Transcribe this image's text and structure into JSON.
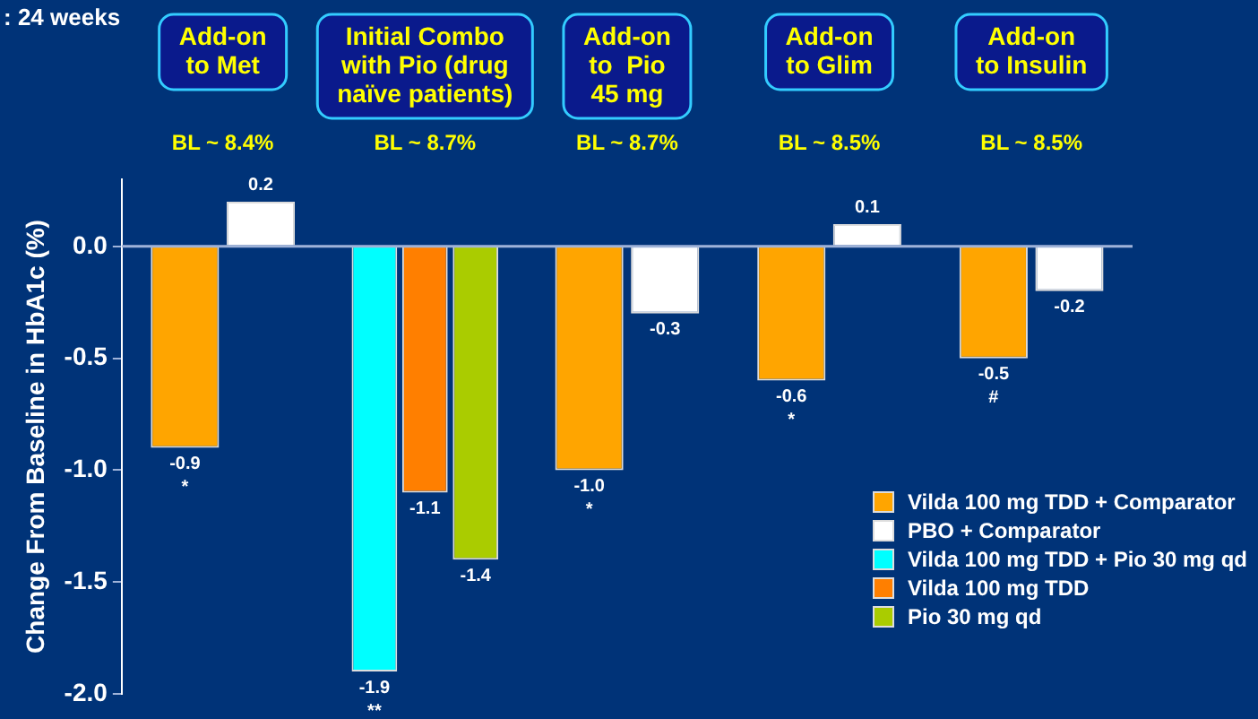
{
  "chart_data": {
    "type": "bar",
    "title": ": 24 weeks",
    "ylabel": "Change From Baseline in HbA1c (%)",
    "categories": [
      "Add-on\nto Met",
      "Initial Combo\nwith Pio (drug\nnaïve patients)",
      "Add-on\nto  Pio\n45 mg",
      "Add-on\nto Glim",
      "Add-on\nto Insulin"
    ],
    "series": [
      {
        "name": "Vilda 100 mg TDD + Comparator",
        "color": "#ffa500",
        "values": [
          -0.9,
          null,
          -1.0,
          -0.6,
          -0.5
        ],
        "value_labels": [
          "-0.9\n*",
          null,
          "-1.0\n*",
          "-0.6\n*",
          "-0.5\n#"
        ]
      },
      {
        "name": "PBO + Comparator",
        "color": "#ffffff",
        "values": [
          0.2,
          null,
          -0.3,
          0.1,
          -0.2
        ],
        "value_labels": [
          "0.2",
          null,
          "-0.3",
          "0.1",
          "-0.2"
        ]
      },
      {
        "name": "Vilda 100 mg TDD + Pio 30 mg qd",
        "color": "#00ffff",
        "values": [
          null,
          -1.9,
          null,
          null,
          null
        ],
        "value_labels": [
          null,
          "-1.9\n**",
          null,
          null,
          null
        ]
      },
      {
        "name": "Vilda 100 mg TDD",
        "color": "#ff7f00",
        "values": [
          null,
          -1.1,
          null,
          null,
          null
        ],
        "value_labels": [
          null,
          "-1.1",
          null,
          null,
          null
        ]
      },
      {
        "name": "Pio 30 mg qd",
        "color": "#aacc00",
        "values": [
          null,
          -1.4,
          null,
          null,
          null
        ],
        "value_labels": [
          null,
          "-1.4",
          null,
          null,
          null
        ]
      }
    ],
    "ylim": [
      -2.0,
      0.3
    ],
    "yticks": [
      {
        "value": 0,
        "label": "0.0"
      },
      {
        "value": -0.5,
        "label": "-0.5"
      },
      {
        "value": -1,
        "label": "-1.0"
      },
      {
        "value": -1.5,
        "label": "-1.5"
      },
      {
        "value": -2,
        "label": "-2.0"
      }
    ],
    "grid": false,
    "legend": "bottom right",
    "ref_lines": [
      {
        "axis": "y",
        "value": 0,
        "color": "#9fb3d9"
      }
    ],
    "annotations": [
      "BL ~ 8.4%",
      "BL ~ 8.7%",
      "BL ~ 8.7%",
      "BL ~ 8.5%",
      "BL ~ 8.5%"
    ]
  }
}
